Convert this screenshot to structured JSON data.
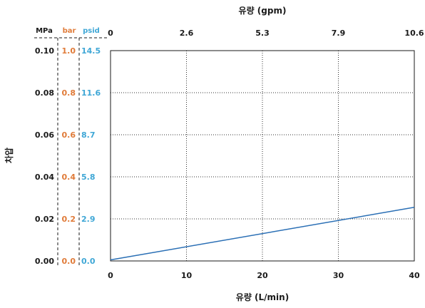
{
  "chart_data": {
    "type": "line",
    "x": [
      0,
      40
    ],
    "xlim": [
      0,
      40
    ],
    "xticks": [
      "0",
      "10",
      "20",
      "30",
      "40"
    ],
    "xlabel": "유량 (L/min)",
    "x2label": "유량 (gpm)",
    "x2ticks": [
      "0",
      "2.6",
      "5.3",
      "7.9",
      "10.6"
    ],
    "ylabel": "차압",
    "ylim": [
      0,
      0.1
    ],
    "y_axes": [
      {
        "unit": "MPa",
        "ticks": [
          "0.00",
          "0.02",
          "0.04",
          "0.06",
          "0.08",
          "0.10"
        ],
        "color": "#1a1a1a"
      },
      {
        "unit": "bar",
        "ticks": [
          "0.0",
          "0.2",
          "0.4",
          "0.6",
          "0.8",
          "1.0"
        ],
        "color": "#e07b39"
      },
      {
        "unit": "psid",
        "ticks": [
          "0.0",
          "2.9",
          "5.8",
          "8.7",
          "11.6",
          "14.5"
        ],
        "color": "#3fa7d6"
      }
    ],
    "series": [
      {
        "values": [
          0.0005,
          0.0255
        ],
        "color": "#2a6fb5"
      }
    ],
    "grid": true
  }
}
